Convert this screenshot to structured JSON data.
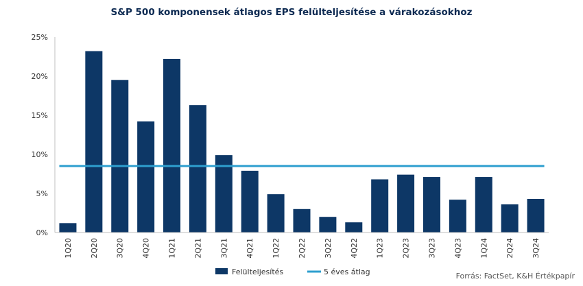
{
  "chart_data": {
    "type": "bar",
    "title": "S&P 500 komponensek átlagos EPS felülteljesítése  a várakozásokhoz",
    "categories": [
      "1Q20",
      "2Q20",
      "3Q20",
      "4Q20",
      "1Q21",
      "2Q21",
      "3Q21",
      "4Q21",
      "1Q22",
      "2Q22",
      "3Q22",
      "4Q22",
      "1Q23",
      "2Q23",
      "3Q23",
      "4Q23",
      "1Q24",
      "2Q24",
      "3Q24"
    ],
    "series": [
      {
        "name": "Felülteljesítés",
        "type": "bar",
        "color": "#0d3766",
        "values": [
          1.2,
          23.2,
          19.5,
          14.2,
          22.2,
          16.3,
          9.9,
          7.9,
          4.9,
          3.0,
          2.0,
          1.3,
          6.8,
          7.4,
          7.1,
          4.2,
          7.1,
          3.6,
          4.3
        ]
      },
      {
        "name": "5 éves átlag",
        "type": "line",
        "color": "#2e9fcf",
        "value": 8.5
      }
    ],
    "yticks": [
      "0%",
      "5%",
      "10%",
      "15%",
      "20%",
      "25%"
    ],
    "ylim": [
      0,
      25
    ],
    "grid": false,
    "legend_placement": "bottom"
  },
  "source": "Forrás: FactSet, K&H Értékpapír"
}
